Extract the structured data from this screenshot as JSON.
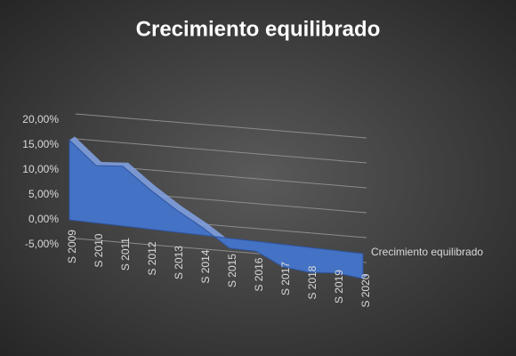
{
  "chart_data": {
    "type": "area3d",
    "title": "Crecimiento equilibrado",
    "categories": [
      "S 2009",
      "S 2010",
      "S 2011",
      "S 2012",
      "S 2013",
      "S 2014",
      "S 2015",
      "S 2016",
      "S 2017",
      "S 2018",
      "S 2019",
      "S 2020"
    ],
    "series": [
      {
        "name": "Crecimiento equilibrado",
        "color": "#4472c4",
        "values": [
          16,
          11.5,
          12,
          8,
          4.5,
          1.5,
          -2,
          -2,
          -4.5,
          -5,
          -4.5,
          -5
        ]
      }
    ],
    "ylim": [
      -5,
      20
    ],
    "yticks": [
      {
        "value": -5,
        "label": "-5,00%"
      },
      {
        "value": 0,
        "label": "0,00%"
      },
      {
        "value": 5,
        "label": "5,00%"
      },
      {
        "value": 10,
        "label": "10,00%"
      },
      {
        "value": 15,
        "label": "15,00%"
      },
      {
        "value": 20,
        "label": "20,00%"
      }
    ],
    "grid": true,
    "legend": "right"
  }
}
